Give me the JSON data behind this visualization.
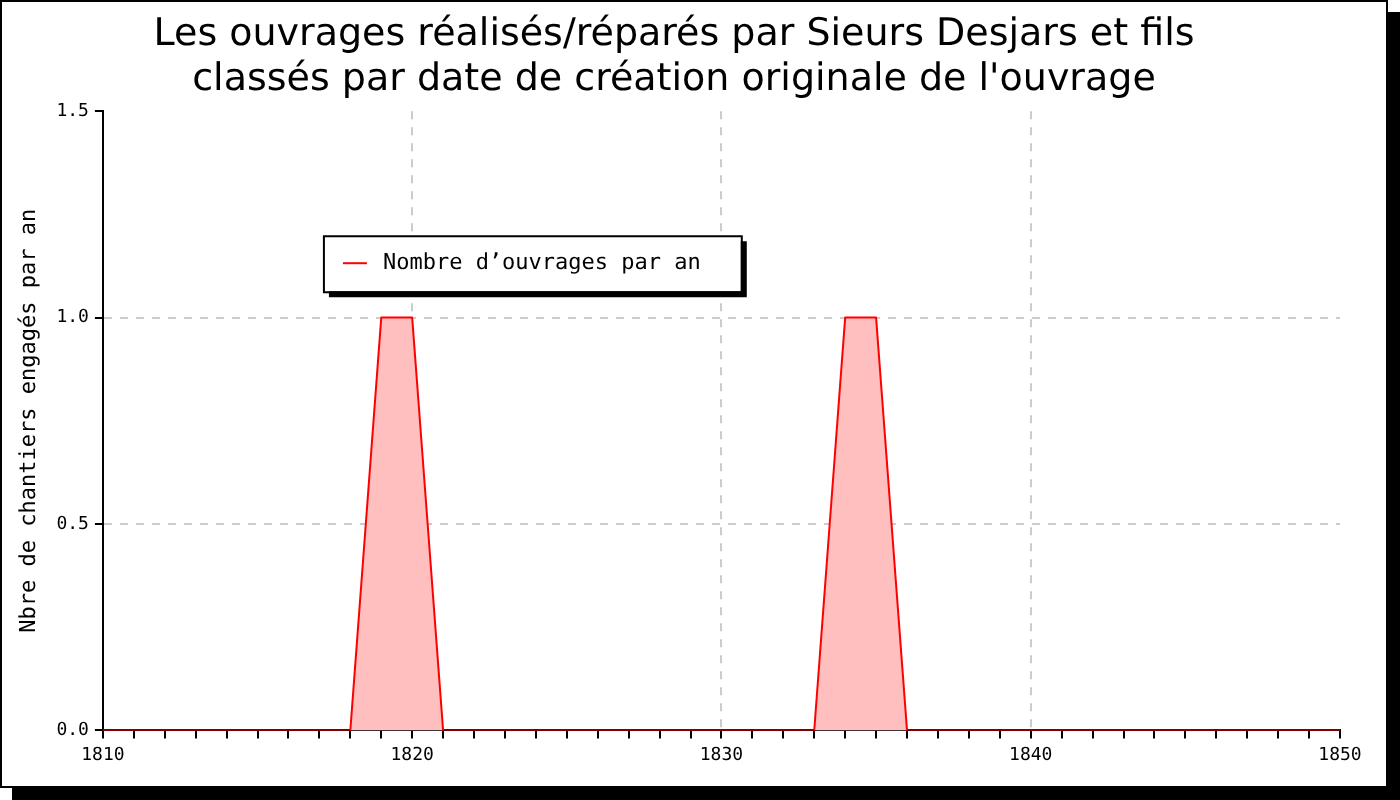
{
  "chart_data": {
    "type": "area",
    "title": "Les ouvrages réalisés/réparés par Sieurs Desjars et fils\nclassés par date de création originale de l'ouvrage",
    "ylabel": "Nbre de chantiers engagés par an",
    "x": [
      1810,
      1818,
      1819,
      1820,
      1821,
      1833,
      1834,
      1835,
      1836,
      1850
    ],
    "series": [
      {
        "name": "Nombre d’ouvrages par an",
        "color": "#ff0000",
        "values": [
          0,
          0,
          1,
          1,
          0,
          0,
          1,
          1,
          0,
          0
        ]
      }
    ],
    "xlim": [
      1810,
      1850
    ],
    "xticks": [
      1810,
      {
        "value": 1811,
        "label": null
      },
      {
        "value": 1812,
        "label": null
      },
      {
        "value": 1813,
        "label": null
      },
      {
        "value": 1814,
        "label": null
      },
      {
        "value": 1815,
        "label": null
      },
      {
        "value": 1816,
        "label": null
      },
      {
        "value": 1817,
        "label": null
      },
      {
        "value": 1818,
        "label": null
      },
      {
        "value": 1819,
        "label": null
      },
      1820,
      {
        "value": 1821,
        "label": null
      },
      {
        "value": 1822,
        "label": null
      },
      {
        "value": 1823,
        "label": null
      },
      {
        "value": 1824,
        "label": null
      },
      {
        "value": 1825,
        "label": null
      },
      {
        "value": 1826,
        "label": null
      },
      {
        "value": 1827,
        "label": null
      },
      {
        "value": 1828,
        "label": null
      },
      {
        "value": 1829,
        "label": null
      },
      1830,
      {
        "value": 1831,
        "label": null
      },
      {
        "value": 1832,
        "label": null
      },
      {
        "value": 1833,
        "label": null
      },
      {
        "value": 1834,
        "label": null
      },
      {
        "value": 1835,
        "label": null
      },
      {
        "value": 1836,
        "label": null
      },
      {
        "value": 1837,
        "label": null
      },
      {
        "value": 1838,
        "label": null
      },
      {
        "value": 1839,
        "label": null
      },
      1840,
      {
        "value": 1841,
        "label": null
      },
      {
        "value": 1842,
        "label": null
      },
      {
        "value": 1843,
        "label": null
      },
      {
        "value": 1844,
        "label": null
      },
      {
        "value": 1845,
        "label": null
      },
      {
        "value": 1846,
        "label": null
      },
      {
        "value": 1847,
        "label": null
      },
      {
        "value": 1848,
        "label": null
      },
      {
        "value": 1849,
        "label": null
      },
      1850
    ],
    "ylim": [
      0,
      1.5
    ],
    "yticks": [
      {
        "value": 0,
        "label": "0.0"
      },
      {
        "value": 0.5,
        "label": "0.5"
      },
      {
        "value": 1,
        "label": "1.0"
      },
      {
        "value": 1.5,
        "label": "1.5"
      }
    ],
    "grid": true,
    "legend": "top left",
    "marker": "none",
    "line_style": "solid"
  }
}
